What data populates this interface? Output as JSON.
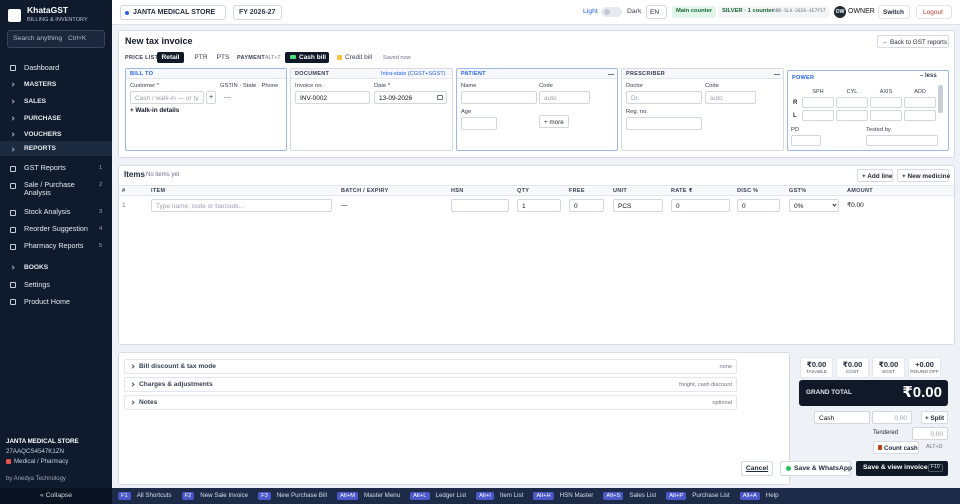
{
  "sidebar": {
    "brand": "KhataGST",
    "tagline": "BILLING & INVENTORY",
    "search": "Search anything",
    "search_key": "Ctrl+K",
    "nav_top": [
      "Dashboard",
      "MASTERS",
      "SALES",
      "PURCHASE",
      "VOUCHERS"
    ],
    "reports": {
      "label": "REPORTS",
      "items": [
        {
          "label": "GST Reports",
          "badge": 1
        },
        {
          "label": "Sale / Purchase Analysis",
          "badge": 2
        },
        {
          "label": "Stock Analysis",
          "badge": 3
        },
        {
          "label": "Reorder Suggestion",
          "badge": 4
        },
        {
          "label": "Pharmacy Reports",
          "badge": 5
        }
      ]
    },
    "nav_bottom": [
      "BOOKS",
      "Settings",
      "Product Home"
    ],
    "footer": {
      "store": "JANTA MEDICAL STORE",
      "gstin": "27AAQCS4547K1ZN",
      "business_type": "Medical / Pharmacy",
      "vendor": "by Anedya Technology",
      "collapse": "« Collapse"
    }
  },
  "topbar": {
    "store": "JANTA MEDICAL STORE",
    "fy": "FY 2026-27",
    "light": "Light",
    "dark": "Dark",
    "lang": "EN",
    "counter": "Main counter",
    "plan": "SILVER · 1 counter",
    "license": "AND-SLV-2026-4E7F57",
    "avatar": "OW",
    "role": "OWNER",
    "switch": "Switch",
    "logout": "Logout"
  },
  "invoice": {
    "title": "New tax invoice",
    "back": "← Back to GST reports",
    "price_list": {
      "label": "PRICE LIST",
      "options": [
        "Retail",
        "PTR",
        "PTS"
      ]
    },
    "payment": {
      "label": "PAYMENT",
      "key": "ALT+T",
      "options": [
        "Cash bill",
        "Credit bill"
      ],
      "status": "Saved now"
    },
    "bill_to": {
      "title": "BILL TO",
      "customer": "Customer *",
      "customer_placeholder": "Cash / walk-in — or ty",
      "add": "+",
      "gstin": "GSTIN · State · Phone",
      "gstin_value": "—",
      "walk_in": "+ Walk-in details"
    },
    "document": {
      "title": "DOCUMENT",
      "tax_mode": "Intra-state (CGST+SGST)",
      "invoice_no_label": "Invoice no.",
      "invoice_no": "INV-0002",
      "date_label": "Date *",
      "date": "13-09-2026"
    },
    "patient": {
      "title": "PATIENT",
      "name": "Name",
      "code": "Code",
      "code_placeholder": "auto",
      "age": "Age",
      "more": "+ more"
    },
    "prescriber": {
      "title": "PRESCRIBER",
      "doctor": "Doctor",
      "doctor_placeholder": "Dr.",
      "code": "Code",
      "code_placeholder": "auto",
      "reg_no": "Reg. no."
    },
    "power": {
      "title": "POWER",
      "toggle": "– less",
      "columns": [
        "SPH",
        "CYL",
        "AXIS",
        "ADD"
      ],
      "rows": [
        "R",
        "L"
      ],
      "pd": "PD",
      "tested_by": "Tested by"
    }
  },
  "items": {
    "title": "Items",
    "status": "No items yet",
    "add_line": "+ Add line",
    "new_medicine": "+ New medicine",
    "columns": [
      "#",
      "ITEM",
      "BATCH / EXPIRY",
      "HSN",
      "QTY",
      "FREE",
      "UNIT",
      "RATE ₹",
      "DISC %",
      "GST%",
      "AMOUNT"
    ],
    "rows": [
      [
        "1",
        "Type name, code or barcode...",
        "—",
        "",
        "1",
        "0",
        "PCS",
        "0",
        "0",
        "0%",
        "₹0.00"
      ]
    ]
  },
  "sections": [
    {
      "label": "Bill discount & tax mode",
      "hint": "none"
    },
    {
      "label": "Charges & adjustments",
      "hint": "freight, cash discount"
    },
    {
      "label": "Notes",
      "hint": "optional"
    }
  ],
  "totals": {
    "boxes": [
      {
        "value": "₹0.00",
        "label": "TAXABLE"
      },
      {
        "value": "₹0.00",
        "label": "CGST"
      },
      {
        "value": "₹0.00",
        "label": "SGST"
      },
      {
        "value": "+0.00",
        "label": "ROUND OFF"
      }
    ],
    "grand_label": "GRAND TOTAL",
    "grand_value": "₹0.00",
    "mode": "Cash",
    "mode_amount": "0.00",
    "split": "+ Split",
    "tendered_label": "Tendered",
    "tendered": "0.00",
    "count_cash": "Count cash",
    "count_key": "ALT+D"
  },
  "actions": {
    "cancel": "Cancel",
    "whatsapp": "Save & WhatsApp",
    "save": "Save & view invoice",
    "save_key": "F10"
  },
  "shortcuts": [
    {
      "key": "F1",
      "label": "All Shortcuts"
    },
    {
      "key": "F2",
      "label": "New Sale Invoice"
    },
    {
      "key": "F3",
      "label": "New Purchase Bill"
    },
    {
      "key": "Alt+M",
      "label": "Master Menu"
    },
    {
      "key": "Alt+L",
      "label": "Ledger List"
    },
    {
      "key": "Alt+I",
      "label": "Item List"
    },
    {
      "key": "Alt+H",
      "label": "HSN Master"
    },
    {
      "key": "Alt+S",
      "label": "Sales List"
    },
    {
      "key": "Alt+P",
      "label": "Purchase List"
    },
    {
      "key": "Alt+A",
      "label": "Help"
    }
  ]
}
